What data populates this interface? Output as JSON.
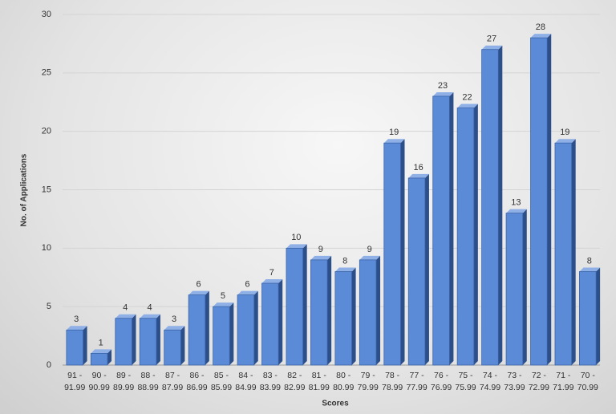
{
  "chart_data": {
    "type": "bar",
    "categories": [
      "91 - 91.99",
      "90 - 90.99",
      "89 - 89.99",
      "88 - 88.99",
      "87 - 87.99",
      "86 - 86.99",
      "85 - 85.99",
      "84 - 84.99",
      "83 - 83.99",
      "82 - 82.99",
      "81 - 81.99",
      "80 - 80.99",
      "79 - 79.99",
      "78 - 78.99",
      "77 - 77.99",
      "76 - 76.99",
      "75 - 75.99",
      "74 - 74.99",
      "73 - 73.99",
      "72 - 72.99",
      "71 - 71.99",
      "70 - 70.99"
    ],
    "values": [
      3,
      1,
      4,
      4,
      3,
      6,
      5,
      6,
      7,
      10,
      9,
      8,
      9,
      19,
      16,
      23,
      22,
      27,
      13,
      28,
      19,
      8
    ],
    "color": "#5b8ad6",
    "x_label": "Scores",
    "y_label": "No. of Applications",
    "ylim": [
      0,
      30
    ],
    "yticks": [
      0,
      5,
      10,
      15,
      20,
      25,
      30
    ],
    "grid": true
  }
}
